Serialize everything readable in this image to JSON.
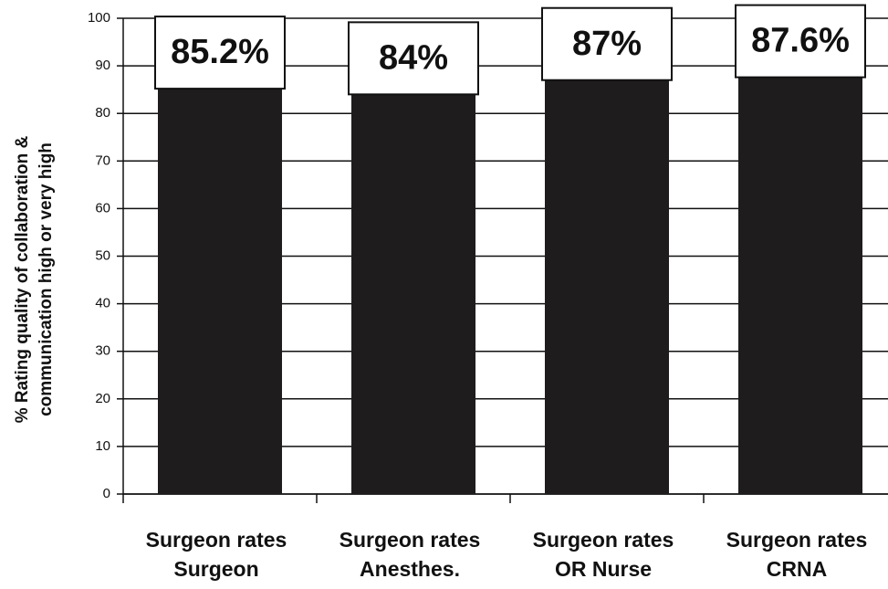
{
  "chart_data": {
    "type": "bar",
    "ylabel": "% Rating quality of collaboration &\ncommunication high or very high",
    "categories": [
      "Surgeon rates\nSurgeon",
      "Surgeon rates\nAnesthes.",
      "Surgeon rates\nOR Nurse",
      "Surgeon rates\nCRNA"
    ],
    "values": [
      85.2,
      84,
      87,
      87.6
    ],
    "value_labels": [
      "85.2%",
      "84%",
      "87%",
      "87.6%"
    ],
    "color": "#1e1c1c",
    "ylim": [
      0,
      100
    ],
    "yticks": [
      0,
      10,
      20,
      30,
      40,
      50,
      60,
      70,
      80,
      90,
      100
    ],
    "grid": true
  }
}
